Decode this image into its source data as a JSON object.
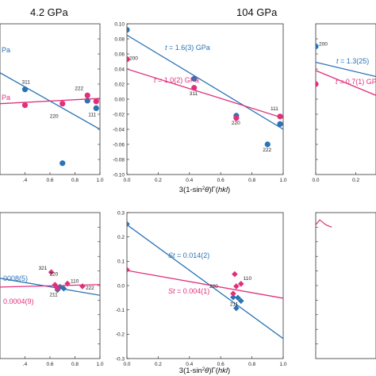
{
  "colors": {
    "blue": "#2a73b5",
    "pink": "#e0307a",
    "axis": "#333333"
  },
  "titles": {
    "left": "4.2 GPa",
    "middle": "104 GPa"
  },
  "xlabels": {
    "top": "3(1-sin²θ)Γ(hkl)",
    "bottom": "3(1-sin²θ)Γ(hkl)"
  },
  "chart_data": [
    {
      "id": "top-left",
      "type": "scatter",
      "xlim": [
        0.2,
        1.0
      ],
      "ylim": [
        -0.1,
        0.1
      ],
      "xticks": [
        0.4,
        0.6,
        0.8,
        1.0
      ],
      "xtick_labels": [
        ".4",
        "0.6",
        "0.8",
        "1.0"
      ],
      "series": [
        {
          "color": "blue",
          "marker": "circle",
          "points": [
            [
              0.4,
              0.013
            ],
            [
              0.7,
              -0.085
            ],
            [
              0.9,
              -0.002
            ],
            [
              0.97,
              -0.012
            ]
          ],
          "fit": [
            [
              0.2,
              0.035
            ],
            [
              1.0,
              -0.04
            ]
          ],
          "fit_label": "Pa"
        },
        {
          "color": "pink",
          "marker": "circle",
          "points": [
            [
              0.4,
              -0.008
            ],
            [
              0.7,
              -0.006
            ],
            [
              0.9,
              0.005
            ],
            [
              0.97,
              -0.003
            ]
          ],
          "fit": [
            [
              0.2,
              -0.006
            ],
            [
              1.0,
              0.001
            ]
          ],
          "fit_label": "Pa"
        }
      ],
      "point_labels": [
        {
          "text": "311",
          "x": 0.4,
          "y": 0.013
        },
        {
          "text": "222",
          "x": 0.9,
          "y": 0.005
        },
        {
          "text": "111",
          "x": 0.97,
          "y": -0.012
        },
        {
          "text": "220",
          "x": 0.7,
          "y": -0.006
        }
      ]
    },
    {
      "id": "top-middle",
      "type": "scatter",
      "xlim": [
        0,
        1.0
      ],
      "ylim": [
        -0.1,
        0.1
      ],
      "xticks": [
        0,
        0.2,
        0.4,
        0.6,
        0.8,
        1.0
      ],
      "xtick_labels": [
        "0.0",
        "0.2",
        "0.4",
        "0.6",
        "0.8",
        "1.0"
      ],
      "yticks": [
        -0.1,
        -0.08,
        -0.06,
        -0.04,
        -0.02,
        0,
        0.02,
        0.04,
        0.06,
        0.08,
        0.1
      ],
      "ytick_labels": [
        "-0.10",
        "-0.08",
        "-0.06",
        "-0.04",
        "-0.02",
        "0.00",
        "0.02",
        "0.04",
        "0.06",
        "0.08",
        "0.10"
      ],
      "series": [
        {
          "color": "blue",
          "marker": "circle",
          "points": [
            [
              0,
              0.092
            ],
            [
              0.43,
              0.027
            ],
            [
              0.7,
              -0.022
            ],
            [
              0.9,
              -0.06
            ],
            [
              0.98,
              -0.033
            ]
          ],
          "fit": [
            [
              0,
              0.085
            ],
            [
              1.0,
              -0.04
            ]
          ],
          "fit_label": "t = 1.6(3) GPa"
        },
        {
          "color": "pink",
          "marker": "circle",
          "points": [
            [
              0,
              0.053
            ],
            [
              0.43,
              0.015
            ],
            [
              0.7,
              -0.025
            ],
            [
              0.98,
              -0.023
            ]
          ],
          "fit": [
            [
              0,
              0.04
            ],
            [
              1.0,
              -0.025
            ]
          ],
          "fit_label": "t = 1.0(2) GPa"
        }
      ],
      "point_labels": [
        {
          "text": "200",
          "x": 0,
          "y": 0.053
        },
        {
          "text": "311",
          "x": 0.43,
          "y": 0.015
        },
        {
          "text": "220",
          "x": 0.7,
          "y": -0.025
        },
        {
          "text": "111",
          "x": 0.98,
          "y": -0.023
        },
        {
          "text": "222",
          "x": 0.9,
          "y": -0.06
        }
      ]
    },
    {
      "id": "top-right",
      "type": "scatter",
      "xlim": [
        0,
        0.3
      ],
      "ylim": [
        -0.1,
        0.1
      ],
      "xticks": [
        0,
        0.2
      ],
      "xtick_labels": [
        "0.0",
        "0.2"
      ],
      "series": [
        {
          "color": "blue",
          "marker": "circle",
          "points": [
            [
              0,
              0.07
            ]
          ],
          "fit": [
            [
              0,
              0.049
            ],
            [
              0.3,
              0.03
            ]
          ],
          "fit_label": "t = 1.3(25)"
        },
        {
          "color": "pink",
          "marker": "circle",
          "points": [
            [
              0,
              0.02
            ]
          ],
          "fit": [
            [
              0,
              0.038
            ],
            [
              0.3,
              0.005
            ]
          ],
          "fit_label": "t = 0.7(1) GPa"
        }
      ],
      "point_labels": [
        {
          "text": "200",
          "x": 0,
          "y": 0.07
        }
      ]
    },
    {
      "id": "bottom-left",
      "type": "scatter",
      "xlim": [
        0.2,
        1.0
      ],
      "ylim": [
        -0.3,
        0.3
      ],
      "xticks": [
        0.4,
        0.6,
        0.8,
        1.0
      ],
      "xtick_labels": [
        ".4",
        "0.6",
        "0.8",
        "1.0"
      ],
      "series": [
        {
          "color": "blue",
          "marker": "diamond",
          "points": [
            [
              0.66,
              -0.018
            ],
            [
              0.68,
              -0.005
            ],
            [
              0.71,
              -0.012
            ]
          ],
          "fit": [
            [
              0.2,
              0.03
            ],
            [
              1.0,
              -0.04
            ]
          ],
          "fit_label": "0008(5)"
        },
        {
          "color": "pink",
          "marker": "diamond",
          "points": [
            [
              0.61,
              0.055
            ],
            [
              0.64,
              0.003
            ],
            [
              0.66,
              -0.012
            ],
            [
              0.74,
              0.008
            ],
            [
              0.86,
              -0.003
            ]
          ],
          "fit": [
            [
              0.2,
              -0.006
            ],
            [
              1.0,
              0.004
            ]
          ],
          "fit_label": "0.0004(9)"
        }
      ],
      "point_labels": [
        {
          "text": "321",
          "x": 0.61,
          "y": 0.055
        },
        {
          "text": "220",
          "x": 0.66,
          "y": 0.028
        },
        {
          "text": "110",
          "x": 0.74,
          "y": 0.008
        },
        {
          "text": "211",
          "x": 0.66,
          "y": -0.012
        },
        {
          "text": "222",
          "x": 0.86,
          "y": -0.003
        }
      ]
    },
    {
      "id": "bottom-middle",
      "type": "scatter",
      "xlim": [
        0,
        1.0
      ],
      "ylim": [
        -0.3,
        0.3
      ],
      "xticks": [
        0,
        0.2,
        0.4,
        0.6,
        0.8,
        1.0
      ],
      "xtick_labels": [
        "0.0",
        "0.2",
        "0.4",
        "0.6",
        "0.8",
        "1.0"
      ],
      "yticks": [
        -0.3,
        -0.2,
        -0.1,
        0,
        0.1,
        0.2,
        0.3
      ],
      "ytick_labels": [
        "-0.3",
        "-0.2",
        "-0.1",
        "0.0",
        "0.1",
        "0.2",
        "0.3"
      ],
      "series": [
        {
          "color": "blue",
          "marker": "diamond",
          "points": [
            [
              0,
              0.253
            ],
            [
              0.68,
              -0.048
            ],
            [
              0.7,
              -0.093
            ],
            [
              0.71,
              -0.05
            ],
            [
              0.73,
              -0.063
            ]
          ],
          "fit": [
            [
              0,
              0.25
            ],
            [
              1.0,
              -0.218
            ]
          ],
          "fit_label": "St = 0.014(2)"
        },
        {
          "color": "pink",
          "marker": "diamond",
          "points": [
            [
              0,
              0.065
            ],
            [
              0.68,
              -0.033
            ],
            [
              0.69,
              0.047
            ],
            [
              0.7,
              -0.003
            ],
            [
              0.73,
              0.007
            ]
          ],
          "fit": [
            [
              0,
              0.062
            ],
            [
              1.0,
              -0.052
            ]
          ],
          "fit_label": "St = 0.004(1)"
        }
      ],
      "point_labels": [
        {
          "text": "200",
          "x": 0,
          "y": 0.065
        },
        {
          "text": "220",
          "x": 0.68,
          "y": -0.003
        },
        {
          "text": "110",
          "x": 0.73,
          "y": 0.007
        },
        {
          "text": "211",
          "x": 0.71,
          "y": -0.05
        }
      ]
    },
    {
      "id": "bottom-right",
      "type": "line",
      "xlim": [
        0,
        0.3
      ],
      "ylim": [
        -0.3,
        0.3
      ],
      "xticks": [],
      "xtick_labels": [],
      "series": [
        {
          "color": "pink",
          "marker": "none",
          "points": [
            [
              0.0,
              0.25
            ],
            [
              0.02,
              0.27
            ],
            [
              0.05,
              0.25
            ],
            [
              0.08,
              0.24
            ]
          ]
        }
      ],
      "point_labels": []
    }
  ]
}
